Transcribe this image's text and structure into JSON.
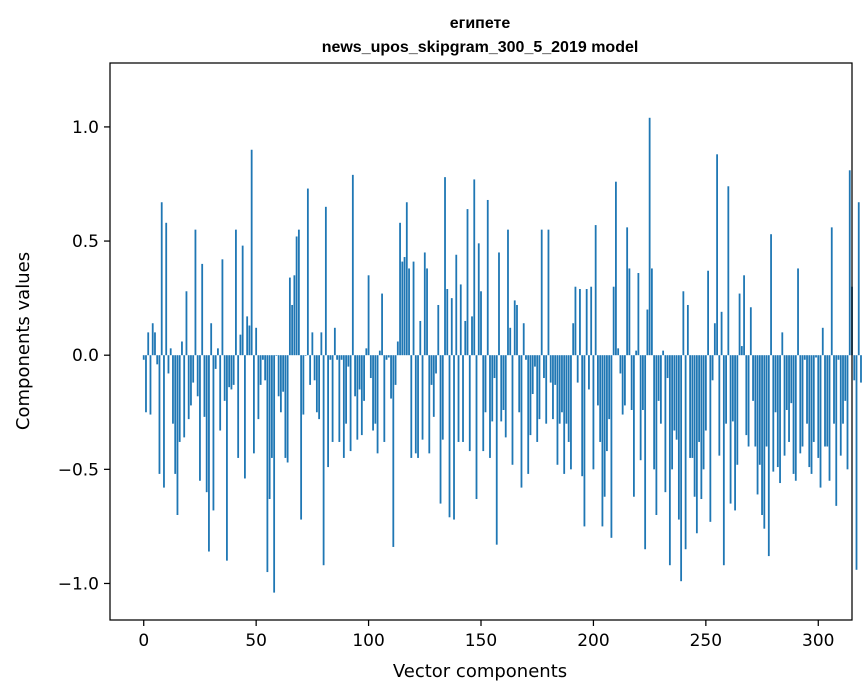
{
  "chart_data": {
    "type": "bar",
    "title": "египете",
    "subtitle": "news_upos_skipgram_300_5_2019 model",
    "xlabel": "Vector components",
    "ylabel": "Components values",
    "xlim": [
      -15,
      315
    ],
    "ylim": [
      -1.16,
      1.28
    ],
    "xticks": [
      0,
      50,
      100,
      150,
      200,
      250,
      300
    ],
    "xtick_labels": [
      "0",
      "50",
      "100",
      "150",
      "200",
      "250",
      "300"
    ],
    "yticks": [
      -1.0,
      -0.5,
      0.0,
      0.5,
      1.0
    ],
    "ytick_labels": [
      "−1.0",
      "−0.5",
      "0.0",
      "0.5",
      "1.0"
    ],
    "bar_color": "#1f77b4",
    "values": [
      -0.02,
      -0.25,
      0.1,
      -0.26,
      0.14,
      0.1,
      -0.04,
      -0.52,
      0.67,
      -0.58,
      0.58,
      -0.08,
      0.03,
      -0.3,
      -0.52,
      -0.7,
      -0.38,
      0.06,
      -0.36,
      0.28,
      -0.28,
      -0.22,
      -0.12,
      0.55,
      -0.18,
      -0.55,
      0.4,
      -0.27,
      -0.6,
      -0.86,
      0.14,
      -0.68,
      -0.06,
      0.03,
      -0.33,
      0.42,
      -0.2,
      -0.9,
      -0.14,
      -0.15,
      -0.13,
      0.55,
      -0.45,
      0.09,
      0.48,
      -0.54,
      0.17,
      0.13,
      0.9,
      -0.43,
      0.12,
      -0.28,
      -0.13,
      -0.02,
      -0.11,
      -0.95,
      -0.63,
      -0.45,
      -1.04,
      0.0,
      -0.18,
      -0.25,
      -0.16,
      -0.45,
      -0.47,
      0.34,
      0.22,
      0.35,
      0.52,
      0.55,
      -0.72,
      -0.26,
      0.0,
      0.73,
      -0.13,
      0.1,
      -0.11,
      -0.25,
      -0.28,
      0.1,
      -0.92,
      0.65,
      -0.49,
      -0.02,
      -0.38,
      0.12,
      -0.02,
      -0.38,
      -0.02,
      -0.45,
      -0.3,
      -0.05,
      -0.42,
      0.79,
      -0.18,
      -0.37,
      -0.15,
      -0.35,
      -0.2,
      0.03,
      0.35,
      -0.1,
      -0.33,
      -0.3,
      -0.43,
      0.02,
      0.27,
      -0.38,
      -0.02,
      -0.01,
      -0.19,
      -0.84,
      -0.13,
      0.06,
      0.58,
      0.41,
      0.43,
      0.67,
      0.38,
      -0.45,
      0.41,
      -0.43,
      -0.45,
      0.15,
      -0.37,
      0.45,
      0.38,
      -0.43,
      -0.13,
      -0.27,
      -0.08,
      0.22,
      -0.65,
      -0.37,
      0.78,
      0.29,
      -0.71,
      0.25,
      -0.72,
      0.44,
      -0.38,
      0.31,
      -0.38,
      0.15,
      0.64,
      -0.42,
      0.17,
      0.77,
      -0.63,
      0.49,
      0.28,
      -0.42,
      -0.25,
      0.68,
      -0.45,
      -0.29,
      -0.1,
      -0.83,
      0.45,
      -0.29,
      -0.24,
      -0.36,
      0.55,
      0.12,
      -0.48,
      0.24,
      0.22,
      -0.25,
      -0.58,
      0.14,
      -0.02,
      -0.52,
      -0.35,
      -0.17,
      -0.05,
      -0.38,
      -0.28,
      0.55,
      -0.1,
      -0.3,
      0.55,
      -0.12,
      -0.28,
      -0.13,
      -0.48,
      -0.3,
      -0.25,
      -0.52,
      -0.3,
      -0.38,
      -0.5,
      0.14,
      0.3,
      -0.12,
      0.29,
      -0.53,
      -0.75,
      0.29,
      -0.15,
      0.3,
      -0.5,
      0.57,
      -0.22,
      -0.38,
      -0.75,
      -0.62,
      -0.42,
      -0.28,
      -0.8,
      0.3,
      0.76,
      0.03,
      -0.08,
      -0.26,
      -0.22,
      0.56,
      0.38,
      -0.24,
      -0.62,
      0.02,
      0.36,
      -0.46,
      -0.24,
      -0.85,
      0.2,
      1.04,
      0.38,
      -0.5,
      -0.7,
      -0.2,
      -0.3,
      0.02,
      -0.6,
      -0.1,
      -0.92,
      -0.5,
      -0.33,
      -0.37,
      -0.72,
      -0.99,
      0.28,
      -0.85,
      0.22,
      -0.45,
      -0.45,
      -0.62,
      -0.78,
      -0.38,
      -0.63,
      -0.5,
      -0.33,
      0.37,
      -0.73,
      -0.11,
      0.14,
      0.88,
      -0.44,
      0.19,
      -0.92,
      -0.3,
      0.74,
      -0.65,
      -0.29,
      -0.68,
      -0.48,
      0.27,
      0.04,
      0.35,
      -0.35,
      -0.4,
      0.21,
      -0.2,
      -0.4,
      -0.61,
      -0.48,
      -0.7,
      -0.76,
      -0.4,
      -0.88,
      0.53,
      -0.51,
      -0.25,
      -0.49,
      -0.56,
      0.1,
      -0.44,
      -0.24,
      -0.38,
      -0.21,
      -0.52,
      -0.55,
      0.38,
      -0.43,
      -0.4,
      -0.02,
      -0.3,
      -0.49,
      -0.52,
      -0.38,
      -0.01,
      -0.45,
      -0.58,
      0.12,
      -0.4,
      -0.4,
      -0.55,
      0.56,
      -0.3,
      -0.66,
      -0.02,
      -0.44,
      -0.3,
      -0.2,
      -0.5,
      0.81,
      0.3,
      -0.11,
      -0.94,
      0.67,
      -0.12
    ]
  }
}
